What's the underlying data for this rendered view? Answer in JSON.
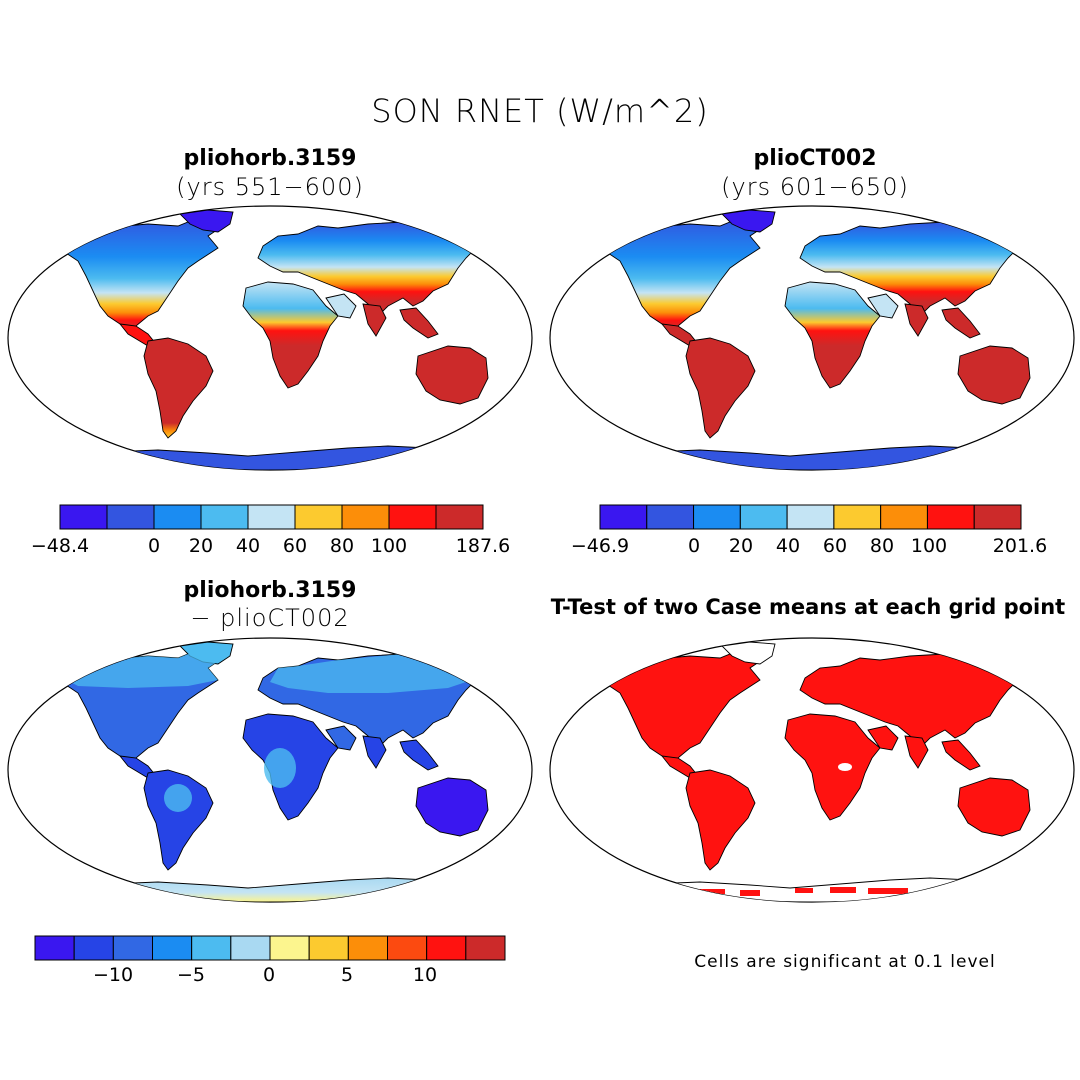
{
  "figure": {
    "title": "SON RNET (W/m^2)"
  },
  "panels": [
    {
      "id": "case1",
      "title": "pliohorb.3159",
      "subtitle": "(yrs 551−600)",
      "colorbar": {
        "colors": [
          "#3a17f0",
          "#3355e0",
          "#1b8cf2",
          "#4cbbf0",
          "#c4e4f4",
          "#fcca2f",
          "#fc8e09",
          "#ff1210",
          "#cc2a2a"
        ],
        "labels": [
          "−48.4",
          "0",
          "20",
          "40",
          "60",
          "80",
          "100",
          "187.6"
        ]
      }
    },
    {
      "id": "case2",
      "title": "plioCT002",
      "subtitle": "(yrs 601−650)",
      "colorbar": {
        "colors": [
          "#3a17f0",
          "#3355e0",
          "#1b8cf2",
          "#4cbbf0",
          "#c4e4f4",
          "#fcca2f",
          "#fc8e09",
          "#ff1210",
          "#cc2a2a"
        ],
        "labels": [
          "−46.9",
          "0",
          "20",
          "40",
          "60",
          "80",
          "100",
          "201.6"
        ]
      }
    },
    {
      "id": "diff",
      "title": "pliohorb.3159",
      "subtitle": "− plioCT002",
      "colorbar": {
        "colors": [
          "#3a17f0",
          "#2644e6",
          "#3168e4",
          "#1b8cf2",
          "#4cbbf0",
          "#a9d9f2",
          "#fcf58e",
          "#fcca2f",
          "#fc8e09",
          "#fc4a10",
          "#ff1210",
          "#cc2a2a"
        ],
        "labels": [
          "−10",
          "−5",
          "0",
          "5",
          "10"
        ]
      }
    },
    {
      "id": "ttest",
      "title": "T-Test of two Case means at each grid point",
      "note": "Cells are significant at 0.1 level"
    }
  ]
}
